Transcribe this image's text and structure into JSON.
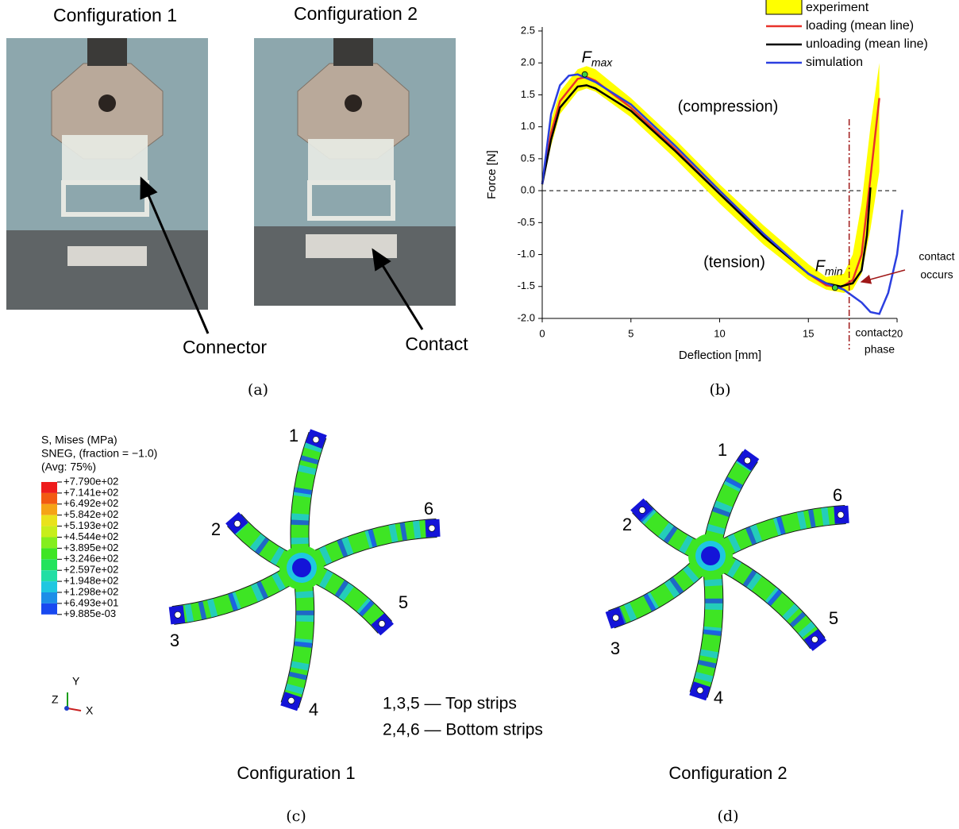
{
  "panel_a": {
    "titles": [
      "Configuration 1",
      "Configuration 2"
    ],
    "callouts": [
      "Connector",
      "Contact"
    ],
    "label": "(a)"
  },
  "chart_data": {
    "type": "line",
    "xlabel": "Deflection [mm]",
    "ylabel": "Force [N]",
    "panel_label": "(b)",
    "xlim": [
      0,
      20
    ],
    "ylim": [
      -2,
      2.5
    ],
    "xticks": [
      0,
      5,
      10,
      15,
      20
    ],
    "yticks": [
      2.5,
      {
        "value": 2,
        "label": "2.0"
      },
      1.5,
      {
        "value": 1,
        "label": "1.0"
      },
      0.5,
      {
        "value": 0,
        "label": "0.0"
      },
      -0.5,
      {
        "value": -1,
        "label": "-1.0"
      },
      -1.5,
      {
        "value": -2,
        "label": "-2.0"
      }
    ],
    "series": [
      {
        "name": "experiment",
        "color": "#ffff00",
        "x": [
          0,
          0.5,
          1,
          2,
          2.5,
          3,
          5,
          7.5,
          10,
          12.5,
          15,
          16,
          17,
          17.5,
          18,
          18.5,
          19
        ],
        "lower": [
          0.05,
          0.7,
          1.2,
          1.55,
          1.6,
          1.55,
          1.15,
          0.5,
          -0.2,
          -0.85,
          -1.4,
          -1.55,
          -1.6,
          -1.55,
          -1.3,
          -0.6,
          0.3
        ],
        "upper": [
          0.15,
          1.1,
          1.55,
          1.9,
          1.95,
          1.9,
          1.45,
          0.8,
          0.1,
          -0.55,
          -1.15,
          -1.35,
          -1.3,
          -1.0,
          -0.2,
          1.0,
          2.0
        ]
      },
      {
        "name": "loading (mean line)",
        "color": "#e8322b",
        "x": [
          0,
          0.5,
          1,
          2,
          2.5,
          3,
          5,
          7.5,
          10,
          12.5,
          15,
          16,
          16.8,
          17.5,
          18,
          18.5,
          19
        ],
        "values": [
          0.1,
          0.9,
          1.4,
          1.75,
          1.78,
          1.72,
          1.3,
          0.65,
          -0.05,
          -0.7,
          -1.3,
          -1.48,
          -1.52,
          -1.4,
          -1.0,
          0.2,
          1.45
        ]
      },
      {
        "name": "unloading (mean line)",
        "color": "#000000",
        "x": [
          0,
          0.5,
          1,
          2,
          2.5,
          3,
          5,
          7.5,
          10,
          12.5,
          15,
          16,
          16.8,
          17.5,
          18,
          18.3,
          18.5
        ],
        "values": [
          0.1,
          0.8,
          1.3,
          1.63,
          1.65,
          1.6,
          1.25,
          0.62,
          -0.05,
          -0.72,
          -1.3,
          -1.45,
          -1.5,
          -1.45,
          -1.25,
          -0.7,
          0.05
        ]
      },
      {
        "name": "simulation",
        "color": "#2b3fe0",
        "x": [
          0,
          0.5,
          1,
          1.5,
          2,
          3,
          5,
          7.5,
          10,
          12.5,
          15,
          16,
          17,
          18,
          18.5,
          19,
          19.5,
          20,
          20.3
        ],
        "values": [
          0.1,
          1.2,
          1.65,
          1.8,
          1.82,
          1.7,
          1.35,
          0.7,
          0,
          -0.68,
          -1.3,
          -1.45,
          -1.55,
          -1.75,
          -1.9,
          -1.93,
          -1.6,
          -1.0,
          -0.3
        ]
      }
    ],
    "points": [
      {
        "label": "F",
        "sub": "max",
        "x": 2.4,
        "y": 1.82
      },
      {
        "label": "F",
        "sub": "min",
        "x": 16.5,
        "y": -1.52
      }
    ],
    "annotations": [
      "(compression)",
      "(tension)",
      "contact",
      "occurs",
      "contact",
      "phase"
    ],
    "contact_x": 17.3
  },
  "panel_c": {
    "legend_title": [
      "S, Mises (MPa)",
      "SNEG, (fraction = −1.0)",
      "(Avg: 75%)"
    ],
    "levels": [
      "+7.790e+02",
      "+7.141e+02",
      "+6.492e+02",
      "+5.842e+02",
      "+5.193e+02",
      "+4.544e+02",
      "+3.895e+02",
      "+3.246e+02",
      "+2.597e+02",
      "+1.948e+02",
      "+1.298e+02",
      "+6.493e+01",
      "+9.885e-03"
    ],
    "colors": [
      "#ee1c1c",
      "#f25a12",
      "#f5a316",
      "#e9e21b",
      "#c7ee1b",
      "#84ee1e",
      "#3ee524",
      "#23e35c",
      "#22dea4",
      "#1ec7e0",
      "#1c8ee8",
      "#1849f0",
      "#1414d8"
    ],
    "axes": [
      "Y",
      "Z",
      "X"
    ],
    "strips": [
      "1",
      "2",
      "3",
      "4",
      "5",
      "6"
    ],
    "notes": [
      "1,3,5 — Top strips",
      "2,4,6 — Bottom strips"
    ],
    "caption": "Configuration 1",
    "label": "(c)"
  },
  "panel_d": {
    "strips": [
      "1",
      "2",
      "3",
      "4",
      "5",
      "6"
    ],
    "caption": "Configuration 2",
    "label": "(d)"
  }
}
